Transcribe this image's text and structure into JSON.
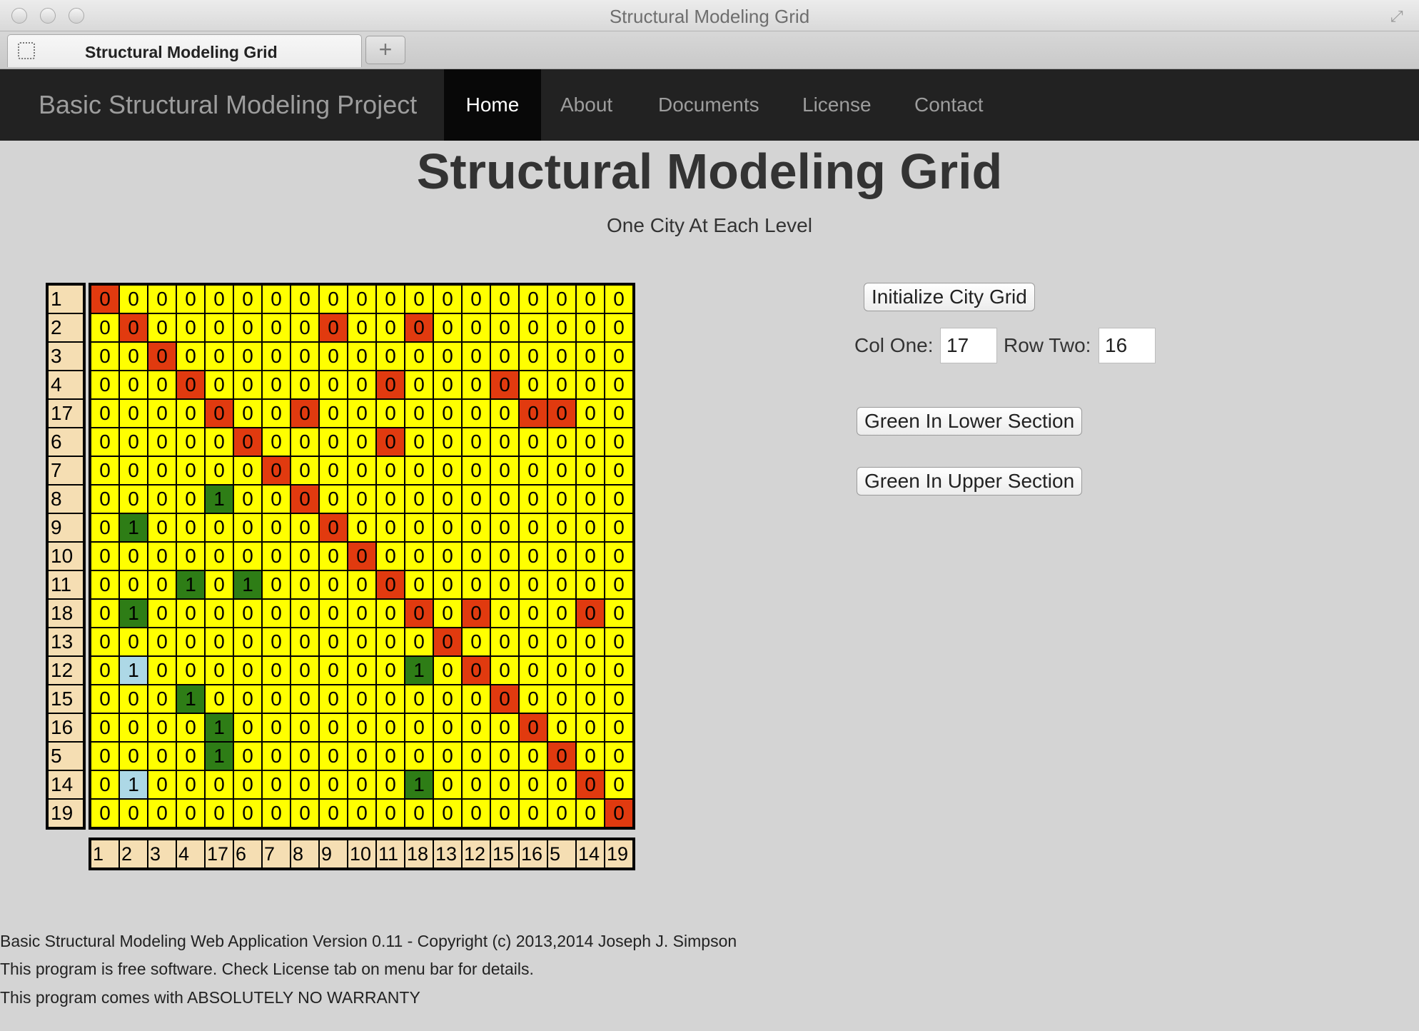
{
  "window": {
    "title": "Structural Modeling Grid"
  },
  "browser_tab": {
    "label": "Structural Modeling Grid",
    "new_tab": "+"
  },
  "navbar": {
    "brand": "Basic Structural Modeling Project",
    "items": [
      {
        "label": "Home",
        "active": true
      },
      {
        "label": "About"
      },
      {
        "label": "Documents"
      },
      {
        "label": "License"
      },
      {
        "label": "Contact"
      }
    ]
  },
  "page": {
    "title": "Structural Modeling Grid",
    "subtitle": "One City At Each Level"
  },
  "grid": {
    "row_labels": [
      "1",
      "2",
      "3",
      "4",
      "17",
      "6",
      "7",
      "8",
      "9",
      "10",
      "11",
      "18",
      "13",
      "12",
      "15",
      "16",
      "5",
      "14",
      "19"
    ],
    "col_labels": [
      "1",
      "2",
      "3",
      "4",
      "17",
      "6",
      "7",
      "8",
      "9",
      "10",
      "11",
      "18",
      "13",
      "12",
      "15",
      "16",
      "5",
      "14",
      "19"
    ],
    "colors": {
      "default": "#ffff00",
      "red": "#e13a0f",
      "green": "#2e7d16",
      "blue": "#add8e6",
      "label_bg": "#f5deb3"
    },
    "cells": [
      [
        "r0",
        "0",
        "0",
        "0",
        "0",
        "0",
        "0",
        "0",
        "0",
        "0",
        "0",
        "0",
        "0",
        "0",
        "0",
        "0",
        "0",
        "0",
        "0"
      ],
      [
        "0",
        "r0",
        "0",
        "0",
        "0",
        "0",
        "0",
        "0",
        "r0",
        "0",
        "0",
        "r0",
        "0",
        "0",
        "0",
        "0",
        "0",
        "0",
        "0"
      ],
      [
        "0",
        "0",
        "r0",
        "0",
        "0",
        "0",
        "0",
        "0",
        "0",
        "0",
        "0",
        "0",
        "0",
        "0",
        "0",
        "0",
        "0",
        "0",
        "0"
      ],
      [
        "0",
        "0",
        "0",
        "r0",
        "0",
        "0",
        "0",
        "0",
        "0",
        "0",
        "r0",
        "0",
        "0",
        "0",
        "r0",
        "0",
        "0",
        "0",
        "0"
      ],
      [
        "0",
        "0",
        "0",
        "0",
        "r0",
        "0",
        "0",
        "r0",
        "0",
        "0",
        "0",
        "0",
        "0",
        "0",
        "0",
        "r0",
        "r0",
        "0",
        "0"
      ],
      [
        "0",
        "0",
        "0",
        "0",
        "0",
        "r0",
        "0",
        "0",
        "0",
        "0",
        "r0",
        "0",
        "0",
        "0",
        "0",
        "0",
        "0",
        "0",
        "0"
      ],
      [
        "0",
        "0",
        "0",
        "0",
        "0",
        "0",
        "r0",
        "0",
        "0",
        "0",
        "0",
        "0",
        "0",
        "0",
        "0",
        "0",
        "0",
        "0",
        "0"
      ],
      [
        "0",
        "0",
        "0",
        "0",
        "g1",
        "0",
        "0",
        "r0",
        "0",
        "0",
        "0",
        "0",
        "0",
        "0",
        "0",
        "0",
        "0",
        "0",
        "0"
      ],
      [
        "0",
        "g1",
        "0",
        "0",
        "0",
        "0",
        "0",
        "0",
        "r0",
        "0",
        "0",
        "0",
        "0",
        "0",
        "0",
        "0",
        "0",
        "0",
        "0"
      ],
      [
        "0",
        "0",
        "0",
        "0",
        "0",
        "0",
        "0",
        "0",
        "0",
        "r0",
        "0",
        "0",
        "0",
        "0",
        "0",
        "0",
        "0",
        "0",
        "0"
      ],
      [
        "0",
        "0",
        "0",
        "g1",
        "0",
        "g1",
        "0",
        "0",
        "0",
        "0",
        "r0",
        "0",
        "0",
        "0",
        "0",
        "0",
        "0",
        "0",
        "0"
      ],
      [
        "0",
        "g1",
        "0",
        "0",
        "0",
        "0",
        "0",
        "0",
        "0",
        "0",
        "0",
        "r0",
        "0",
        "r0",
        "0",
        "0",
        "0",
        "r0",
        "0"
      ],
      [
        "0",
        "0",
        "0",
        "0",
        "0",
        "0",
        "0",
        "0",
        "0",
        "0",
        "0",
        "0",
        "r0",
        "0",
        "0",
        "0",
        "0",
        "0",
        "0"
      ],
      [
        "0",
        "b1",
        "0",
        "0",
        "0",
        "0",
        "0",
        "0",
        "0",
        "0",
        "0",
        "g1",
        "0",
        "r0",
        "0",
        "0",
        "0",
        "0",
        "0"
      ],
      [
        "0",
        "0",
        "0",
        "g1",
        "0",
        "0",
        "0",
        "0",
        "0",
        "0",
        "0",
        "0",
        "0",
        "0",
        "r0",
        "0",
        "0",
        "0",
        "0"
      ],
      [
        "0",
        "0",
        "0",
        "0",
        "g1",
        "0",
        "0",
        "0",
        "0",
        "0",
        "0",
        "0",
        "0",
        "0",
        "0",
        "r0",
        "0",
        "0",
        "0"
      ],
      [
        "0",
        "0",
        "0",
        "0",
        "g1",
        "0",
        "0",
        "0",
        "0",
        "0",
        "0",
        "0",
        "0",
        "0",
        "0",
        "0",
        "r0",
        "0",
        "0"
      ],
      [
        "0",
        "b1",
        "0",
        "0",
        "0",
        "0",
        "0",
        "0",
        "0",
        "0",
        "0",
        "g1",
        "0",
        "0",
        "0",
        "0",
        "0",
        "r0",
        "0"
      ],
      [
        "0",
        "0",
        "0",
        "0",
        "0",
        "0",
        "0",
        "0",
        "0",
        "0",
        "0",
        "0",
        "0",
        "0",
        "0",
        "0",
        "0",
        "0",
        "r0"
      ]
    ]
  },
  "controls": {
    "init_button": "Initialize City Grid",
    "col_one_label": "Col One:",
    "col_one_value": "17",
    "row_two_label": "Row Two:",
    "row_two_value": "16",
    "green_lower_button": "Green In Lower Section",
    "green_upper_button": "Green In Upper Section"
  },
  "footer": {
    "line1": "Basic Structural Modeling Web Application Version 0.11 - Copyright (c) 2013,2014 Joseph J. Simpson",
    "line2": "This program is free software. Check License tab on menu bar for details.",
    "line3": "This program comes with ABSOLUTELY NO WARRANTY"
  }
}
